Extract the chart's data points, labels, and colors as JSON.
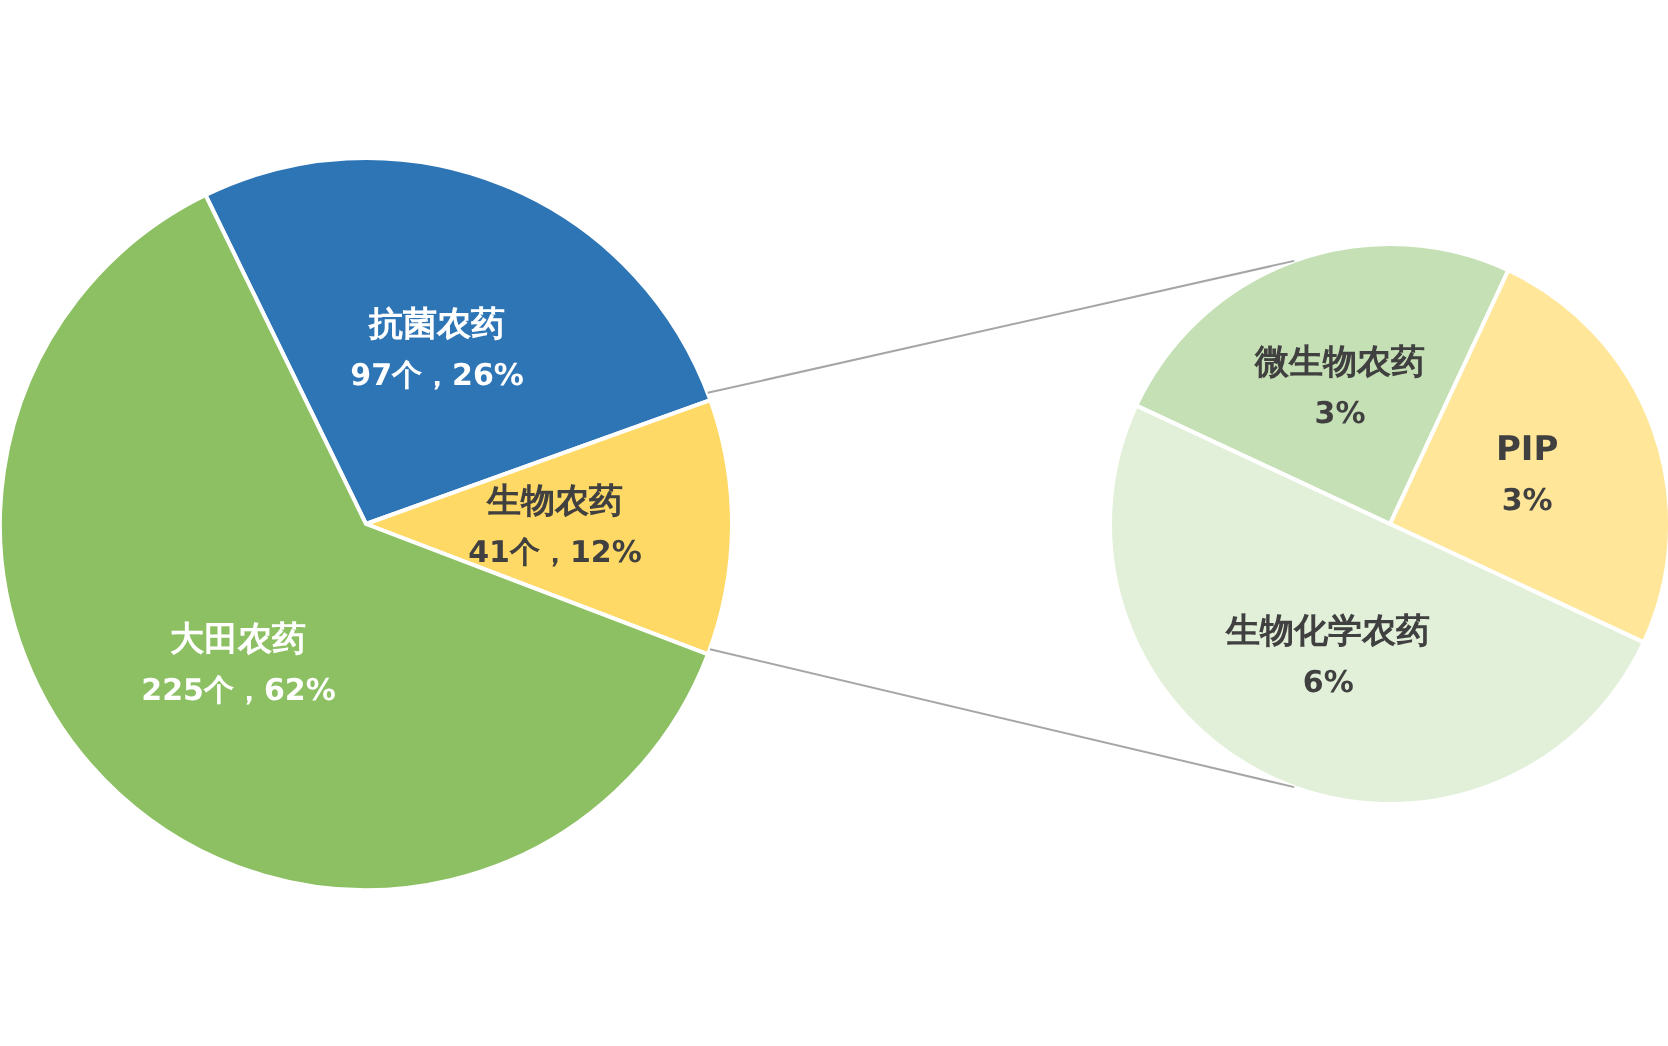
{
  "chart_data": [
    {
      "type": "pie",
      "categories": [
        "抗菌农药",
        "生物农药",
        "大田农药"
      ],
      "values": [
        97,
        41,
        225
      ],
      "colors": [
        "#2e75b6",
        "#ffd966",
        "#8cc063"
      ],
      "value_labels": [
        "97个，26%",
        "41个，12%",
        "225个，62%"
      ]
    },
    {
      "type": "pie",
      "categories": [
        "微生物农药",
        "PIP",
        "生物化学农药"
      ],
      "values": [
        3,
        3,
        6
      ],
      "colors": [
        "#c5e0b4",
        "#ffe699",
        "#e2f0d9"
      ],
      "value_labels": [
        "3%",
        "3%",
        "6%"
      ]
    }
  ]
}
